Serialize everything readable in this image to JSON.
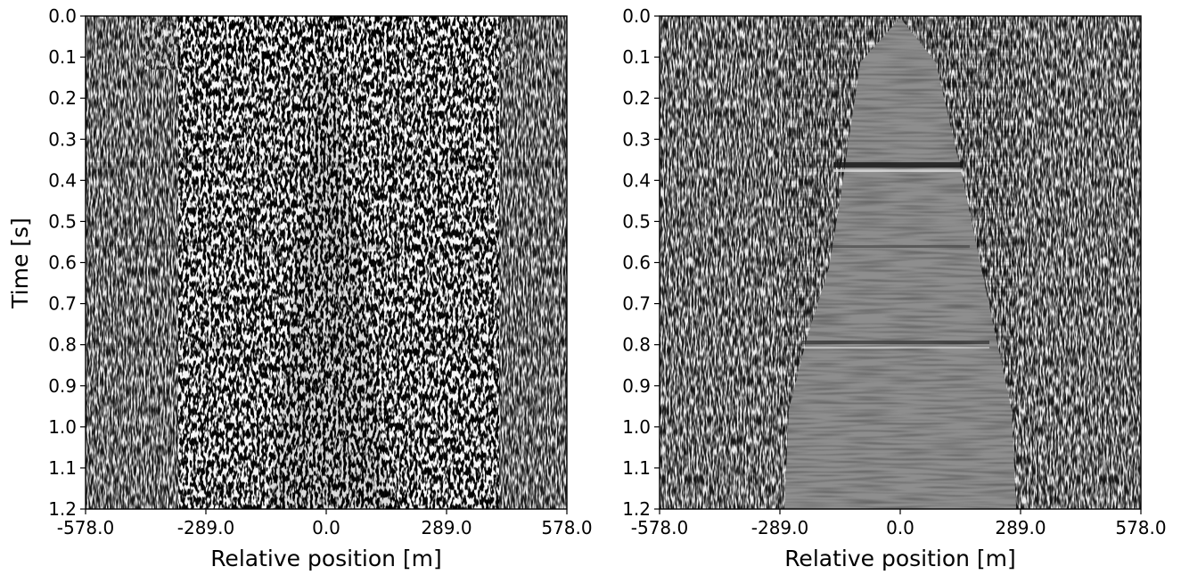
{
  "chart_data": [
    {
      "type": "heatmap",
      "title": "",
      "xlabel": "Relative position [m]",
      "ylabel": "Time [s]",
      "xlim": [
        -578.0,
        578.0
      ],
      "ylim": [
        1.2,
        0.0
      ],
      "x_ticks": [
        "-578.0",
        "-289.0",
        "0.0",
        "289.0",
        "578.0"
      ],
      "x_tick_values": [
        -578.0,
        -289.0,
        0.0,
        289.0,
        578.0
      ],
      "y_ticks": [
        "0.0",
        "0.1",
        "0.2",
        "0.3",
        "0.4",
        "0.5",
        "0.6",
        "0.7",
        "0.8",
        "0.9",
        "1.0",
        "1.1",
        "1.2"
      ],
      "y_tick_values": [
        0.0,
        0.1,
        0.2,
        0.3,
        0.4,
        0.5,
        0.6,
        0.7,
        0.8,
        0.9,
        1.0,
        1.1,
        1.2
      ],
      "colormap": "gray",
      "description": "raw seismic shot gather: dense noisy wavefield, strong ground-roll cone centered at 0.0"
    },
    {
      "type": "heatmap",
      "title": "",
      "xlabel": "Relative position [m]",
      "ylabel": "",
      "xlim": [
        -578.0,
        578.0
      ],
      "ylim": [
        1.2,
        0.0
      ],
      "x_ticks": [
        "-578.0",
        "-289.0",
        "0.0",
        "289.0",
        "578.0"
      ],
      "x_tick_values": [
        -578.0,
        -289.0,
        0.0,
        289.0,
        578.0
      ],
      "y_ticks": [
        "0.0",
        "0.1",
        "0.2",
        "0.3",
        "0.4",
        "0.5",
        "0.6",
        "0.7",
        "0.8",
        "0.9",
        "1.0",
        "1.1",
        "1.2"
      ],
      "y_tick_values": [
        0.0,
        0.1,
        0.2,
        0.3,
        0.4,
        0.5,
        0.6,
        0.7,
        0.8,
        0.9,
        1.0,
        1.1,
        1.2
      ],
      "colormap": "gray",
      "description": "filtered gather: muted above first-break line, ground-roll cone removed, flat reflections near 0.37 s, 0.55 s, 0.8 s"
    }
  ]
}
